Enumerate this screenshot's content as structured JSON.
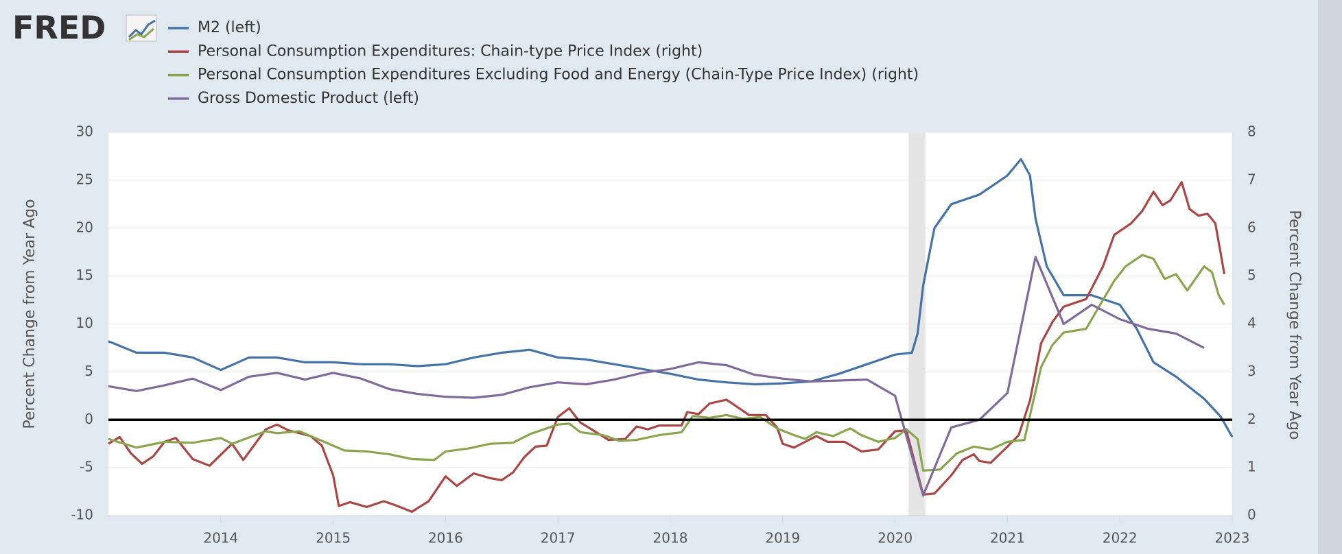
{
  "logo": "FRED",
  "chart_data": {
    "type": "line",
    "y_label": "Percent Change from Year Ago",
    "y2_label": "Percent Change from Year Ago",
    "xlim": [
      2013,
      2023
    ],
    "xticks": [
      2014,
      2015,
      2016,
      2017,
      2018,
      2019,
      2020,
      2021,
      2022,
      2023
    ],
    "ylim": [
      -10,
      30
    ],
    "yticks": [
      -10,
      -5,
      0,
      5,
      10,
      15,
      20,
      25,
      30
    ],
    "y2lim": [
      0,
      8
    ],
    "y2ticks": [
      0,
      1,
      2,
      3,
      4,
      5,
      6,
      7,
      8
    ],
    "grid": true,
    "baseline": 0,
    "shading": [
      [
        2020.12,
        2020.27
      ]
    ],
    "series": [
      {
        "name": "M2 (left)",
        "color": "#4572a7",
        "x": [
          2013.0,
          2013.25,
          2013.5,
          2013.75,
          2014.0,
          2014.25,
          2014.5,
          2014.75,
          2015.0,
          2015.25,
          2015.5,
          2015.75,
          2016.0,
          2016.25,
          2016.5,
          2016.75,
          2017.0,
          2017.25,
          2017.5,
          2017.75,
          2018.0,
          2018.25,
          2018.5,
          2018.75,
          2019.0,
          2019.25,
          2019.5,
          2019.75,
          2020.0,
          2020.15,
          2020.2,
          2020.25,
          2020.35,
          2020.5,
          2020.75,
          2021.0,
          2021.12,
          2021.2,
          2021.25,
          2021.35,
          2021.5,
          2021.75,
          2022.0,
          2022.15,
          2022.3,
          2022.5,
          2022.75,
          2022.9,
          2023.0
        ],
        "values": [
          8.2,
          7.0,
          7.0,
          6.5,
          5.2,
          6.5,
          6.5,
          6.0,
          6.0,
          5.8,
          5.8,
          5.6,
          5.8,
          6.5,
          7.0,
          7.3,
          6.5,
          6.3,
          5.8,
          5.3,
          4.8,
          4.2,
          3.9,
          3.7,
          3.8,
          4.0,
          4.8,
          5.8,
          6.8,
          7.0,
          9.0,
          14.0,
          20.0,
          22.5,
          23.5,
          25.5,
          27.2,
          25.5,
          21.0,
          16.0,
          13.0,
          13.0,
          12.0,
          9.5,
          6.0,
          4.5,
          2.2,
          0.3,
          -1.8
        ]
      },
      {
        "name": "Personal Consumption Expenditures: Chain-type Price Index (right)",
        "color": "#aa4643",
        "axis": "y2",
        "x": [
          2013.0,
          2013.1,
          2013.2,
          2013.3,
          2013.4,
          2013.5,
          2013.6,
          2013.75,
          2013.9,
          2014.1,
          2014.2,
          2014.4,
          2014.5,
          2014.6,
          2014.8,
          2014.9,
          2015.0,
          2015.05,
          2015.15,
          2015.3,
          2015.45,
          2015.55,
          2015.7,
          2015.85,
          2016.0,
          2016.1,
          2016.25,
          2016.4,
          2016.5,
          2016.6,
          2016.7,
          2016.8,
          2016.9,
          2017.0,
          2017.1,
          2017.2,
          2017.3,
          2017.45,
          2017.6,
          2017.7,
          2017.8,
          2017.9,
          2018.1,
          2018.15,
          2018.25,
          2018.35,
          2018.5,
          2018.6,
          2018.7,
          2018.85,
          2018.95,
          2019.0,
          2019.1,
          2019.3,
          2019.4,
          2019.55,
          2019.7,
          2019.85,
          2020.0,
          2020.1,
          2020.25,
          2020.35,
          2020.5,
          2020.6,
          2020.7,
          2020.75,
          2020.85,
          2021.0,
          2021.1,
          2021.2,
          2021.3,
          2021.4,
          2021.5,
          2021.7,
          2021.85,
          2021.95,
          2022.1,
          2022.2,
          2022.3,
          2022.38,
          2022.45,
          2022.55,
          2022.62,
          2022.7,
          2022.78,
          2022.85,
          2022.93
        ],
        "values": [
          1.5,
          1.64,
          1.3,
          1.08,
          1.24,
          1.54,
          1.62,
          1.18,
          1.04,
          1.5,
          1.16,
          1.8,
          1.9,
          1.78,
          1.66,
          1.46,
          0.84,
          0.2,
          0.28,
          0.18,
          0.3,
          0.22,
          0.08,
          0.3,
          0.82,
          0.62,
          0.88,
          0.78,
          0.74,
          0.9,
          1.22,
          1.44,
          1.46,
          2.06,
          2.24,
          1.94,
          1.8,
          1.58,
          1.6,
          1.86,
          1.8,
          1.88,
          1.88,
          2.16,
          2.12,
          2.34,
          2.42,
          2.26,
          2.1,
          2.1,
          1.84,
          1.5,
          1.42,
          1.66,
          1.54,
          1.54,
          1.34,
          1.38,
          1.76,
          1.78,
          0.44,
          0.46,
          0.84,
          1.16,
          1.28,
          1.14,
          1.1,
          1.44,
          1.68,
          2.4,
          3.6,
          4.04,
          4.36,
          4.52,
          5.2,
          5.86,
          6.1,
          6.36,
          6.76,
          6.48,
          6.58,
          6.96,
          6.4,
          6.26,
          6.3,
          6.1,
          5.04
        ]
      },
      {
        "name": "Personal Consumption Expenditures Excluding Food and Energy (Chain-Type Price Index) (right)",
        "color": "#89a54e",
        "axis": "y2",
        "x": [
          2013.0,
          2013.25,
          2013.5,
          2013.75,
          2014.0,
          2014.1,
          2014.4,
          2014.5,
          2014.7,
          2015.0,
          2015.1,
          2015.3,
          2015.5,
          2015.7,
          2015.9,
          2016.0,
          2016.2,
          2016.4,
          2016.6,
          2016.75,
          2016.9,
          2017.0,
          2017.1,
          2017.2,
          2017.4,
          2017.55,
          2017.7,
          2017.9,
          2018.1,
          2018.2,
          2018.35,
          2018.5,
          2018.65,
          2018.8,
          2018.95,
          2019.1,
          2019.2,
          2019.3,
          2019.45,
          2019.6,
          2019.7,
          2019.85,
          2020.0,
          2020.1,
          2020.2,
          2020.25,
          2020.4,
          2020.55,
          2020.7,
          2020.85,
          2021.0,
          2021.15,
          2021.3,
          2021.4,
          2021.5,
          2021.7,
          2021.8,
          2021.95,
          2022.05,
          2022.2,
          2022.3,
          2022.4,
          2022.5,
          2022.6,
          2022.75,
          2022.82,
          2022.88,
          2022.93
        ],
        "values": [
          1.6,
          1.42,
          1.54,
          1.52,
          1.62,
          1.5,
          1.76,
          1.72,
          1.76,
          1.46,
          1.36,
          1.34,
          1.28,
          1.18,
          1.16,
          1.34,
          1.4,
          1.5,
          1.52,
          1.7,
          1.82,
          1.9,
          1.92,
          1.74,
          1.68,
          1.56,
          1.58,
          1.68,
          1.74,
          2.08,
          2.04,
          2.1,
          2.02,
          2.06,
          1.82,
          1.68,
          1.6,
          1.74,
          1.66,
          1.82,
          1.68,
          1.54,
          1.62,
          1.8,
          1.6,
          0.94,
          0.96,
          1.3,
          1.44,
          1.38,
          1.54,
          1.58,
          3.1,
          3.56,
          3.82,
          3.9,
          4.3,
          4.9,
          5.2,
          5.44,
          5.36,
          4.94,
          5.04,
          4.7,
          5.2,
          5.08,
          4.6,
          4.4
        ]
      },
      {
        "name": "Gross Domestic Product (left)",
        "color": "#80699b",
        "x": [
          2013.0,
          2013.25,
          2013.5,
          2013.75,
          2014.0,
          2014.25,
          2014.5,
          2014.75,
          2015.0,
          2015.25,
          2015.5,
          2015.75,
          2016.0,
          2016.25,
          2016.5,
          2016.75,
          2017.0,
          2017.25,
          2017.5,
          2017.75,
          2018.0,
          2018.25,
          2018.5,
          2018.75,
          2019.0,
          2019.25,
          2019.5,
          2019.75,
          2020.0,
          2020.25,
          2020.5,
          2020.75,
          2021.0,
          2021.25,
          2021.5,
          2021.75,
          2022.0,
          2022.25,
          2022.5,
          2022.75
        ],
        "values": [
          3.5,
          3.0,
          3.6,
          4.3,
          3.1,
          4.5,
          4.9,
          4.2,
          4.9,
          4.3,
          3.2,
          2.7,
          2.4,
          2.3,
          2.6,
          3.4,
          3.9,
          3.7,
          4.2,
          4.9,
          5.3,
          6.0,
          5.7,
          4.7,
          4.3,
          4.0,
          4.1,
          4.2,
          2.5,
          -7.9,
          -0.8,
          0.0,
          2.8,
          17.0,
          10.0,
          12.0,
          10.5,
          9.5,
          9.0,
          7.5
        ]
      }
    ]
  }
}
